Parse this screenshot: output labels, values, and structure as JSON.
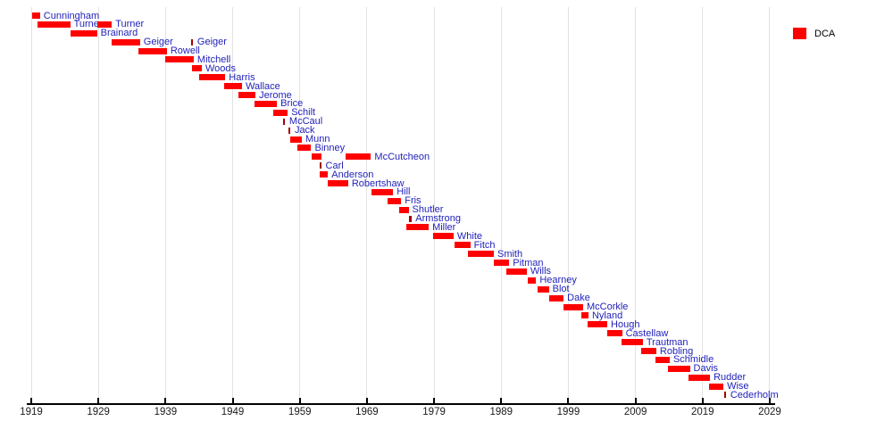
{
  "colors": {
    "bar": "#ff0000",
    "tick_bar": "#a40000",
    "label_text": "#2222bb",
    "axis_text": "#1a1a1a",
    "gridline": "#e2e2e2",
    "axis_line": "#000000",
    "background": "#ffffff"
  },
  "chart_data": {
    "type": "gantt",
    "variant": "timeline-of-officeholders",
    "title": "",
    "grid": true,
    "legend": {
      "label": "DCA",
      "color": "#ff0000",
      "position": "top-right"
    },
    "x_axis": {
      "min": 1919,
      "max": 2029,
      "tick_interval": 10,
      "ticks": [
        1919,
        1929,
        1939,
        1949,
        1959,
        1969,
        1979,
        1989,
        1999,
        2009,
        2019,
        2029
      ]
    },
    "entries": [
      {
        "name": "Cunningham",
        "bars": [
          {
            "start": 1919.1,
            "end": 1920.3,
            "label": "Cunningham"
          }
        ]
      },
      {
        "name": "Turner",
        "bars": [
          {
            "start": 1919.9,
            "end": 1924.8,
            "label": "Turner"
          },
          {
            "start": 1928.8,
            "end": 1931.0,
            "label": "Turner"
          }
        ]
      },
      {
        "name": "Brainard",
        "bars": [
          {
            "start": 1924.8,
            "end": 1928.8,
            "label": "Brainard"
          }
        ]
      },
      {
        "name": "Geiger",
        "bars": [
          {
            "start": 1931.0,
            "end": 1935.2,
            "label": "Geiger"
          },
          {
            "start": 1942.8,
            "end": 1943.2,
            "label": "Geiger",
            "tick": true
          }
        ]
      },
      {
        "name": "Rowell",
        "bars": [
          {
            "start": 1935.0,
            "end": 1939.2,
            "label": "Rowell"
          }
        ]
      },
      {
        "name": "Mitchell",
        "bars": [
          {
            "start": 1939.0,
            "end": 1943.2,
            "label": "Mitchell"
          }
        ]
      },
      {
        "name": "Woods",
        "bars": [
          {
            "start": 1942.9,
            "end": 1944.4,
            "label": "Woods"
          }
        ]
      },
      {
        "name": "Harris",
        "bars": [
          {
            "start": 1944.0,
            "end": 1947.9,
            "label": "Harris"
          }
        ]
      },
      {
        "name": "Wallace",
        "bars": [
          {
            "start": 1947.7,
            "end": 1950.4,
            "label": "Wallace"
          }
        ]
      },
      {
        "name": "Jerome",
        "bars": [
          {
            "start": 1949.8,
            "end": 1952.4,
            "label": "Jerome"
          }
        ]
      },
      {
        "name": "Brice",
        "bars": [
          {
            "start": 1952.2,
            "end": 1955.6,
            "label": "Brice"
          }
        ]
      },
      {
        "name": "Schilt",
        "bars": [
          {
            "start": 1955.0,
            "end": 1957.2,
            "label": "Schilt"
          }
        ]
      },
      {
        "name": "McCaul",
        "bars": [
          {
            "start": 1956.5,
            "end": 1956.9,
            "label": "McCaul",
            "tick": true
          }
        ]
      },
      {
        "name": "Jack",
        "bars": [
          {
            "start": 1957.3,
            "end": 1957.7,
            "label": "Jack",
            "tick": true
          }
        ]
      },
      {
        "name": "Munn",
        "bars": [
          {
            "start": 1957.6,
            "end": 1959.3,
            "label": "Munn"
          }
        ]
      },
      {
        "name": "Binney",
        "bars": [
          {
            "start": 1958.7,
            "end": 1960.7,
            "label": "Binney"
          }
        ]
      },
      {
        "name": "McCutcheon",
        "bars": [
          {
            "start": 1960.7,
            "end": 1962.2,
            "label": ""
          },
          {
            "start": 1965.8,
            "end": 1969.6,
            "label": "McCutcheon"
          }
        ]
      },
      {
        "name": "Carl",
        "bars": [
          {
            "start": 1961.9,
            "end": 1962.3,
            "label": "Carl",
            "tick": true
          }
        ]
      },
      {
        "name": "Anderson",
        "bars": [
          {
            "start": 1962.0,
            "end": 1963.2,
            "label": "Anderson"
          }
        ]
      },
      {
        "name": "Robertshaw",
        "bars": [
          {
            "start": 1963.2,
            "end": 1966.2,
            "label": "Robertshaw"
          }
        ]
      },
      {
        "name": "Hill",
        "bars": [
          {
            "start": 1969.7,
            "end": 1972.9,
            "label": "Hill"
          }
        ]
      },
      {
        "name": "Fris",
        "bars": [
          {
            "start": 1972.1,
            "end": 1974.1,
            "label": "Fris"
          }
        ]
      },
      {
        "name": "Shutler",
        "bars": [
          {
            "start": 1973.8,
            "end": 1975.2,
            "label": "Shutler"
          }
        ]
      },
      {
        "name": "Armstrong",
        "bars": [
          {
            "start": 1975.3,
            "end": 1975.7,
            "label": "Armstrong",
            "tick": true
          }
        ]
      },
      {
        "name": "Miller",
        "bars": [
          {
            "start": 1974.9,
            "end": 1978.2,
            "label": "Miller"
          }
        ]
      },
      {
        "name": "White",
        "bars": [
          {
            "start": 1978.9,
            "end": 1981.9,
            "label": "White"
          }
        ]
      },
      {
        "name": "Fitch",
        "bars": [
          {
            "start": 1982.0,
            "end": 1984.4,
            "label": "Fitch"
          }
        ]
      },
      {
        "name": "Smith",
        "bars": [
          {
            "start": 1984.0,
            "end": 1987.9,
            "label": "Smith"
          }
        ]
      },
      {
        "name": "Pitman",
        "bars": [
          {
            "start": 1987.9,
            "end": 1990.2,
            "label": "Pitman"
          }
        ]
      },
      {
        "name": "Wills",
        "bars": [
          {
            "start": 1989.8,
            "end": 1992.8,
            "label": "Wills"
          }
        ]
      },
      {
        "name": "Hearney",
        "bars": [
          {
            "start": 1993.0,
            "end": 1994.2,
            "label": "Hearney"
          }
        ]
      },
      {
        "name": "Blot",
        "bars": [
          {
            "start": 1994.4,
            "end": 1996.1,
            "label": "Blot"
          }
        ]
      },
      {
        "name": "Dake",
        "bars": [
          {
            "start": 1996.1,
            "end": 1998.3,
            "label": "Dake"
          }
        ]
      },
      {
        "name": "McCorkle",
        "bars": [
          {
            "start": 1998.3,
            "end": 2001.2,
            "label": "McCorkle"
          }
        ]
      },
      {
        "name": "Nyland",
        "bars": [
          {
            "start": 2000.9,
            "end": 2002.0,
            "label": "Nyland"
          }
        ]
      },
      {
        "name": "Hough",
        "bars": [
          {
            "start": 2001.9,
            "end": 2004.8,
            "label": "Hough"
          }
        ]
      },
      {
        "name": "Castellaw",
        "bars": [
          {
            "start": 2004.8,
            "end": 2007.0,
            "label": "Castellaw"
          }
        ]
      },
      {
        "name": "Trautman",
        "bars": [
          {
            "start": 2006.9,
            "end": 2010.1,
            "label": "Trautman"
          }
        ]
      },
      {
        "name": "Robling",
        "bars": [
          {
            "start": 2009.8,
            "end": 2012.1,
            "label": "Robling"
          }
        ]
      },
      {
        "name": "Schmidle",
        "bars": [
          {
            "start": 2012.0,
            "end": 2014.1,
            "label": "Schmidle"
          }
        ]
      },
      {
        "name": "Davis",
        "bars": [
          {
            "start": 2013.9,
            "end": 2017.1,
            "label": "Davis"
          }
        ]
      },
      {
        "name": "Rudder",
        "bars": [
          {
            "start": 2016.9,
            "end": 2020.1,
            "label": "Rudder"
          }
        ]
      },
      {
        "name": "Wise",
        "bars": [
          {
            "start": 2019.9,
            "end": 2022.1,
            "label": "Wise"
          }
        ]
      },
      {
        "name": "Cederholm",
        "bars": [
          {
            "start": 2022.2,
            "end": 2022.6,
            "label": "Cederholm",
            "tick": true
          }
        ]
      }
    ]
  }
}
